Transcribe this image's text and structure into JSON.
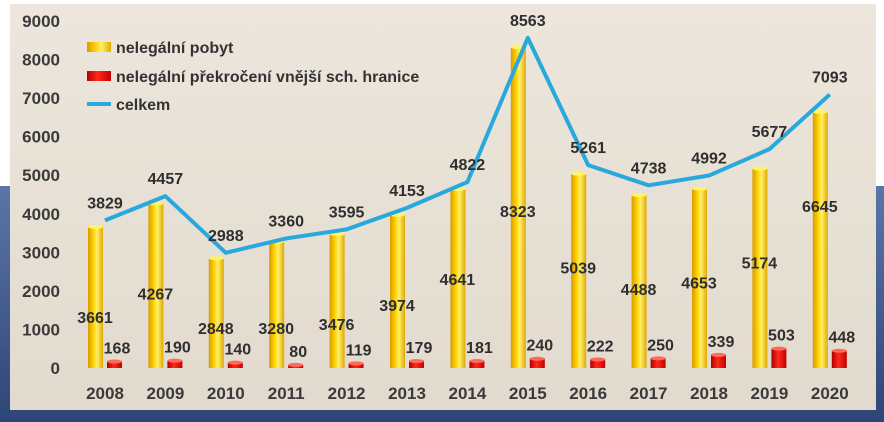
{
  "colors": {
    "bar_pobyt": "#f2c200",
    "bar_hranice": "#e01010",
    "line_celkem": "#29a8de",
    "background": "#e9e2d7",
    "frame": "#3f5a8c"
  },
  "chart_data": {
    "type": "bar",
    "categories": [
      "2008",
      "2009",
      "2010",
      "2011",
      "2012",
      "2013",
      "2014",
      "2015",
      "2016",
      "2017",
      "2018",
      "2019",
      "2020"
    ],
    "series": [
      {
        "name": "nelegální pobyt",
        "type": "bar",
        "values": [
          3661,
          4267,
          2848,
          3280,
          3476,
          3974,
          4641,
          8323,
          5039,
          4488,
          4653,
          5174,
          6645
        ]
      },
      {
        "name": "nelegální překročení vnější sch. hranice",
        "type": "bar",
        "values": [
          168,
          190,
          140,
          80,
          119,
          179,
          181,
          240,
          222,
          250,
          339,
          503,
          448
        ]
      },
      {
        "name": "celkem",
        "type": "line",
        "values": [
          3829,
          4457,
          2988,
          3360,
          3595,
          4153,
          4822,
          8563,
          5261,
          4738,
          4992,
          5677,
          7093
        ]
      }
    ],
    "ylim": [
      0,
      9000
    ],
    "yticks": [
      "0",
      "1000",
      "2000",
      "3000",
      "4000",
      "5000",
      "6000",
      "7000",
      "8000",
      "9000"
    ],
    "legend_position": "top-left",
    "grid": false
  }
}
